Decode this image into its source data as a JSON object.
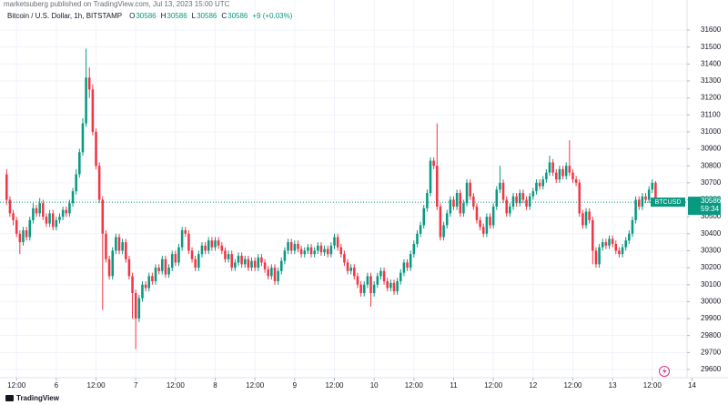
{
  "chart_data": {
    "type": "candlestick",
    "published": "marketsuberg published on TradingView.com, Jul 13, 2023 15:00 UTC",
    "title": "Bitcoin / U.S. Dollar, 1h, BITSTAMP",
    "header_ohlc": [
      {
        "label": "O",
        "value": 30586
      },
      {
        "label": "H",
        "value": 30586
      },
      {
        "label": "L",
        "value": 30586
      },
      {
        "label": "C",
        "value": 30586
      }
    ],
    "change": "+9 (+0.03%)",
    "symbol": "BTCUSD",
    "last_price": 30586,
    "countdown": "59:34",
    "brand": "TradingView",
    "up_color": "#089981",
    "down_color": "#f23645",
    "grid": true,
    "ylim": [
      29550,
      31700
    ],
    "yticks": [
      29600,
      29700,
      29800,
      29900,
      30000,
      30100,
      30200,
      30300,
      30400,
      30500,
      30600,
      30700,
      30800,
      30900,
      31000,
      31100,
      31200,
      31300,
      31400,
      31500,
      31600
    ],
    "xlim": [
      -2,
      205.5
    ],
    "xticks": [
      {
        "value": 3,
        "label": "12:00"
      },
      {
        "value": 15,
        "label": "6"
      },
      {
        "value": 27,
        "label": "12:00"
      },
      {
        "value": 39,
        "label": "7"
      },
      {
        "value": 51,
        "label": "12:00"
      },
      {
        "value": 63,
        "label": "8"
      },
      {
        "value": 75,
        "label": "12:00"
      },
      {
        "value": 87,
        "label": "9"
      },
      {
        "value": 99,
        "label": "12:00"
      },
      {
        "value": 111,
        "label": "10"
      },
      {
        "value": 123,
        "label": "12:00"
      },
      {
        "value": 135,
        "label": "11"
      },
      {
        "value": 147,
        "label": "12:00"
      },
      {
        "value": 159,
        "label": "12"
      },
      {
        "value": 171,
        "label": "12:00"
      },
      {
        "value": 183,
        "label": "13"
      },
      {
        "value": 195,
        "label": "12:00"
      },
      {
        "value": 207,
        "label": "14"
      }
    ],
    "ohlc": [
      [
        30750,
        30780,
        30570,
        30600
      ],
      [
        30600,
        30620,
        30500,
        30520
      ],
      [
        30520,
        30540,
        30450,
        30480
      ],
      [
        30480,
        30500,
        30380,
        30400
      ],
      [
        30400,
        30420,
        30280,
        30350
      ],
      [
        30350,
        30440,
        30330,
        30420
      ],
      [
        30420,
        30440,
        30360,
        30380
      ],
      [
        30380,
        30500,
        30360,
        30480
      ],
      [
        30480,
        30580,
        30460,
        30550
      ],
      [
        30550,
        30570,
        30500,
        30520
      ],
      [
        30520,
        30610,
        30500,
        30580
      ],
      [
        30580,
        30600,
        30480,
        30500
      ],
      [
        30500,
        30520,
        30440,
        30460
      ],
      [
        30460,
        30540,
        30440,
        30520
      ],
      [
        30520,
        30540,
        30420,
        30440
      ],
      [
        30440,
        30500,
        30420,
        30480
      ],
      [
        30480,
        30520,
        30460,
        30500
      ],
      [
        30500,
        30560,
        30480,
        30540
      ],
      [
        30540,
        30560,
        30500,
        30520
      ],
      [
        30520,
        30600,
        30500,
        30580
      ],
      [
        30580,
        30670,
        30560,
        30650
      ],
      [
        30650,
        30780,
        30630,
        30750
      ],
      [
        30750,
        30900,
        30730,
        30880
      ],
      [
        30880,
        31080,
        30860,
        31050
      ],
      [
        31050,
        31490,
        31030,
        31320
      ],
      [
        31320,
        31380,
        31200,
        31250
      ],
      [
        31250,
        31280,
        30980,
        31000
      ],
      [
        31000,
        31020,
        30780,
        30800
      ],
      [
        30800,
        30820,
        30580,
        30600
      ],
      [
        30600,
        30620,
        29950,
        30400
      ],
      [
        30400,
        30420,
        30230,
        30250
      ],
      [
        30250,
        30270,
        30130,
        30150
      ],
      [
        30150,
        30320,
        30130,
        30300
      ],
      [
        30300,
        30400,
        30280,
        30380
      ],
      [
        30380,
        30400,
        30280,
        30300
      ],
      [
        30300,
        30370,
        30280,
        30350
      ],
      [
        30350,
        30370,
        30230,
        30250
      ],
      [
        30250,
        30270,
        30130,
        30150
      ],
      [
        30150,
        30170,
        29900,
        30050
      ],
      [
        30050,
        30070,
        29720,
        29900
      ],
      [
        29900,
        30040,
        29880,
        30020
      ],
      [
        30020,
        30120,
        30000,
        30100
      ],
      [
        30100,
        30120,
        30060,
        30080
      ],
      [
        30080,
        30170,
        30060,
        30150
      ],
      [
        30150,
        30170,
        30100,
        30120
      ],
      [
        30120,
        30220,
        30100,
        30200
      ],
      [
        30200,
        30220,
        30160,
        30180
      ],
      [
        30180,
        30270,
        30160,
        30250
      ],
      [
        30250,
        30270,
        30140,
        30160
      ],
      [
        30160,
        30220,
        30140,
        30200
      ],
      [
        30200,
        30300,
        30180,
        30280
      ],
      [
        30280,
        30300,
        30210,
        30230
      ],
      [
        30230,
        30340,
        30210,
        30320
      ],
      [
        30320,
        30440,
        30300,
        30420
      ],
      [
        30420,
        30440,
        30380,
        30400
      ],
      [
        30400,
        30420,
        30280,
        30300
      ],
      [
        30300,
        30320,
        30230,
        30250
      ],
      [
        30250,
        30270,
        30180,
        30200
      ],
      [
        30200,
        30300,
        30180,
        30280
      ],
      [
        30280,
        30350,
        30260,
        30330
      ],
      [
        30330,
        30350,
        30280,
        30300
      ],
      [
        30300,
        30380,
        30280,
        30360
      ],
      [
        30360,
        30380,
        30300,
        30320
      ],
      [
        30320,
        30380,
        30300,
        30360
      ],
      [
        30360,
        30380,
        30310,
        30330
      ],
      [
        30330,
        30350,
        30280,
        30300
      ],
      [
        30300,
        30320,
        30230,
        30250
      ],
      [
        30250,
        30300,
        30230,
        30280
      ],
      [
        30280,
        30300,
        30180,
        30200
      ],
      [
        30200,
        30250,
        30180,
        30230
      ],
      [
        30230,
        30290,
        30210,
        30270
      ],
      [
        30270,
        30290,
        30200,
        30220
      ],
      [
        30220,
        30270,
        30200,
        30250
      ],
      [
        30250,
        30270,
        30180,
        30200
      ],
      [
        30200,
        30260,
        30180,
        30240
      ],
      [
        30240,
        30260,
        30180,
        30200
      ],
      [
        30200,
        30280,
        30180,
        30260
      ],
      [
        30260,
        30280,
        30210,
        30230
      ],
      [
        30230,
        30250,
        30170,
        30190
      ],
      [
        30190,
        30210,
        30130,
        30150
      ],
      [
        30150,
        30220,
        30130,
        30200
      ],
      [
        30200,
        30220,
        30100,
        30120
      ],
      [
        30120,
        30200,
        30100,
        30180
      ],
      [
        30180,
        30260,
        30160,
        30240
      ],
      [
        30240,
        30320,
        30220,
        30300
      ],
      [
        30300,
        30370,
        30280,
        30350
      ],
      [
        30350,
        30370,
        30280,
        30300
      ],
      [
        30300,
        30360,
        30280,
        30340
      ],
      [
        30340,
        30360,
        30290,
        30310
      ],
      [
        30310,
        30330,
        30260,
        30280
      ],
      [
        30280,
        30320,
        30260,
        30300
      ],
      [
        30300,
        30340,
        30280,
        30320
      ],
      [
        30320,
        30340,
        30260,
        30280
      ],
      [
        30280,
        30320,
        30260,
        30300
      ],
      [
        30300,
        30350,
        30280,
        30330
      ],
      [
        30330,
        30350,
        30270,
        30290
      ],
      [
        30290,
        30330,
        30270,
        30310
      ],
      [
        30310,
        30330,
        30260,
        30280
      ],
      [
        30280,
        30350,
        30260,
        30330
      ],
      [
        30330,
        30400,
        30310,
        30380
      ],
      [
        30380,
        30400,
        30300,
        30320
      ],
      [
        30320,
        30340,
        30260,
        30280
      ],
      [
        30280,
        30300,
        30210,
        30230
      ],
      [
        30230,
        30250,
        30160,
        30180
      ],
      [
        30180,
        30220,
        30160,
        30200
      ],
      [
        30200,
        30220,
        30130,
        30150
      ],
      [
        30150,
        30170,
        30080,
        30100
      ],
      [
        30100,
        30120,
        30030,
        30050
      ],
      [
        30050,
        30120,
        30030,
        30100
      ],
      [
        30100,
        30170,
        30080,
        30150
      ],
      [
        30150,
        30170,
        29970,
        30050
      ],
      [
        30050,
        30120,
        30030,
        30100
      ],
      [
        30100,
        30170,
        30080,
        30150
      ],
      [
        30150,
        30200,
        30130,
        30180
      ],
      [
        30180,
        30200,
        30100,
        30120
      ],
      [
        30120,
        30140,
        30060,
        30080
      ],
      [
        30080,
        30130,
        30060,
        30110
      ],
      [
        30110,
        30130,
        30040,
        30060
      ],
      [
        30060,
        30140,
        30040,
        30120
      ],
      [
        30120,
        30190,
        30100,
        30170
      ],
      [
        30170,
        30250,
        30150,
        30230
      ],
      [
        30230,
        30250,
        30180,
        30200
      ],
      [
        30200,
        30300,
        30180,
        30280
      ],
      [
        30280,
        30360,
        30260,
        30340
      ],
      [
        30340,
        30420,
        30320,
        30400
      ],
      [
        30400,
        30470,
        30380,
        30450
      ],
      [
        30450,
        30570,
        30430,
        30550
      ],
      [
        30550,
        30660,
        30530,
        30640
      ],
      [
        30640,
        30850,
        30620,
        30830
      ],
      [
        30830,
        30850,
        30780,
        30800
      ],
      [
        30800,
        31050,
        30540,
        30560
      ],
      [
        30560,
        30580,
        30360,
        30380
      ],
      [
        30380,
        30470,
        30360,
        30450
      ],
      [
        30450,
        30540,
        30430,
        30520
      ],
      [
        30520,
        30620,
        30500,
        30600
      ],
      [
        30600,
        30620,
        30540,
        30560
      ],
      [
        30560,
        30660,
        30540,
        30640
      ],
      [
        30640,
        30660,
        30500,
        30520
      ],
      [
        30520,
        30600,
        30500,
        30580
      ],
      [
        30580,
        30720,
        30560,
        30700
      ],
      [
        30700,
        30720,
        30600,
        30620
      ],
      [
        30620,
        30640,
        30540,
        30560
      ],
      [
        30560,
        30580,
        30460,
        30480
      ],
      [
        30480,
        30500,
        30420,
        30440
      ],
      [
        30440,
        30460,
        30380,
        30400
      ],
      [
        30400,
        30520,
        30380,
        30500
      ],
      [
        30500,
        30520,
        30430,
        30450
      ],
      [
        30450,
        30580,
        30430,
        30560
      ],
      [
        30560,
        30680,
        30540,
        30660
      ],
      [
        30660,
        30800,
        30640,
        30700
      ],
      [
        30700,
        30720,
        30580,
        30600
      ],
      [
        30600,
        30620,
        30500,
        30520
      ],
      [
        30520,
        30580,
        30500,
        30560
      ],
      [
        30560,
        30640,
        30540,
        30620
      ],
      [
        30620,
        30640,
        30560,
        30580
      ],
      [
        30580,
        30660,
        30560,
        30640
      ],
      [
        30640,
        30660,
        30580,
        30600
      ],
      [
        30600,
        30620,
        30540,
        30560
      ],
      [
        30560,
        30640,
        30540,
        30620
      ],
      [
        30620,
        30670,
        30600,
        30650
      ],
      [
        30650,
        30720,
        30630,
        30700
      ],
      [
        30700,
        30720,
        30660,
        30680
      ],
      [
        30680,
        30740,
        30660,
        30720
      ],
      [
        30720,
        30780,
        30700,
        30760
      ],
      [
        30760,
        30860,
        30740,
        30820
      ],
      [
        30820,
        30840,
        30740,
        30760
      ],
      [
        30760,
        30780,
        30700,
        30720
      ],
      [
        30720,
        30800,
        30700,
        30780
      ],
      [
        30780,
        30800,
        30720,
        30740
      ],
      [
        30740,
        30820,
        30720,
        30800
      ],
      [
        30800,
        30950,
        30740,
        30760
      ],
      [
        30760,
        30780,
        30700,
        30720
      ],
      [
        30720,
        30740,
        30680,
        30700
      ],
      [
        30700,
        30720,
        30500,
        30520
      ],
      [
        30520,
        30540,
        30430,
        30450
      ],
      [
        30450,
        30550,
        30430,
        30530
      ],
      [
        30530,
        30550,
        30460,
        30480
      ],
      [
        30480,
        30500,
        30220,
        30300
      ],
      [
        30300,
        30320,
        30200,
        30220
      ],
      [
        30220,
        30340,
        30200,
        30320
      ],
      [
        30320,
        30370,
        30300,
        30350
      ],
      [
        30350,
        30370,
        30310,
        30330
      ],
      [
        30330,
        30390,
        30310,
        30370
      ],
      [
        30370,
        30390,
        30320,
        30340
      ],
      [
        30340,
        30360,
        30280,
        30300
      ],
      [
        30300,
        30320,
        30260,
        30280
      ],
      [
        30280,
        30340,
        30260,
        30320
      ],
      [
        30320,
        30380,
        30300,
        30360
      ],
      [
        30360,
        30420,
        30340,
        30400
      ],
      [
        30400,
        30500,
        30380,
        30480
      ],
      [
        30480,
        30620,
        30460,
        30600
      ],
      [
        30600,
        30620,
        30540,
        30560
      ],
      [
        30560,
        30640,
        30540,
        30620
      ],
      [
        30620,
        30640,
        30580,
        30600
      ],
      [
        30600,
        30680,
        30580,
        30660
      ],
      [
        30660,
        30720,
        30640,
        30700
      ],
      [
        30700,
        30710,
        30560,
        30586
      ]
    ]
  }
}
